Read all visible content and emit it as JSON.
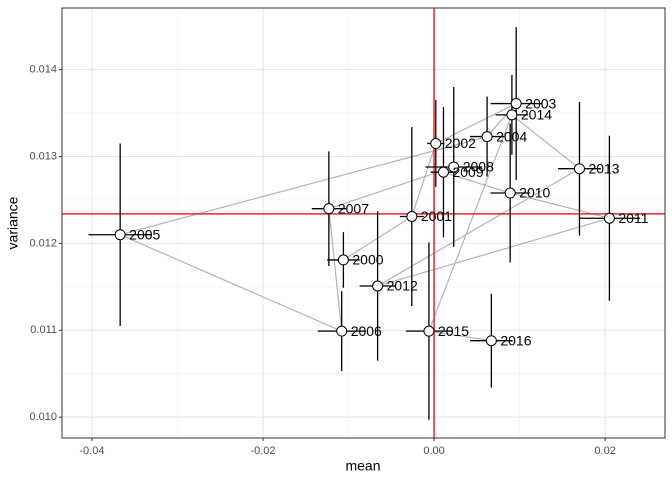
{
  "chart_data": {
    "type": "scatter",
    "x_label": "mean",
    "y_label": "variance",
    "xlim": [
      -0.0435,
      0.027
    ],
    "ylim": [
      0.00976,
      0.01471
    ],
    "xticks": [
      -0.04,
      -0.02,
      {
        "value": 0,
        "label": "0.00"
      },
      0.02
    ],
    "yticks": [
      {
        "value": 0.01,
        "label": "0.010"
      },
      0.011,
      0.012,
      0.013,
      0.014
    ],
    "grid": true,
    "vline": 0,
    "hline": 0.01234,
    "ref_color": "#e8262a",
    "path_color": "#b3b3b3",
    "point_color": "#ffffff",
    "error_color": "#000000",
    "points": [
      {
        "label": "2000",
        "x": -0.0106,
        "y": 0.01181,
        "xerr": 0.0019,
        "yerr": 0.00032
      },
      {
        "label": "2001",
        "x": -0.0026,
        "y": 0.01231,
        "xerr": 0.0014,
        "yerr": 0.00103
      },
      {
        "label": "2002",
        "x": 0.0002,
        "y": 0.01315,
        "xerr": 0.001,
        "yerr": 0.0005
      },
      {
        "label": "2003",
        "x": 0.0096,
        "y": 0.01361,
        "xerr": 0.003,
        "yerr": 0.00088
      },
      {
        "label": "2004",
        "x": 0.0062,
        "y": 0.01323,
        "xerr": 0.002,
        "yerr": 0.00046
      },
      {
        "label": "2005",
        "x": -0.0367,
        "y": 0.0121,
        "xerr": 0.0037,
        "yerr": 0.00105
      },
      {
        "label": "2006",
        "x": -0.0108,
        "y": 0.01099,
        "xerr": 0.0028,
        "yerr": 0.00046
      },
      {
        "label": "2007",
        "x": -0.0123,
        "y": 0.0124,
        "xerr": 0.002,
        "yerr": 0.00066
      },
      {
        "label": "2008",
        "x": 0.0023,
        "y": 0.01288,
        "xerr": 0.0033,
        "yerr": 0.00092
      },
      {
        "label": "2009",
        "x": 0.0011,
        "y": 0.01282,
        "xerr": 0.0015,
        "yerr": 0.00075
      },
      {
        "label": "2010",
        "x": 0.0089,
        "y": 0.01258,
        "xerr": 0.0023,
        "yerr": 0.0008
      },
      {
        "label": "2011",
        "x": 0.0205,
        "y": 0.01229,
        "xerr": 0.0036,
        "yerr": 0.00095
      },
      {
        "label": "2012",
        "x": -0.0066,
        "y": 0.01151,
        "xerr": 0.0021,
        "yerr": 0.00086
      },
      {
        "label": "2013",
        "x": 0.017,
        "y": 0.01286,
        "xerr": 0.0025,
        "yerr": 0.00077
      },
      {
        "label": "2014",
        "x": 0.0091,
        "y": 0.01348,
        "xerr": 0.0019,
        "yerr": 0.00046
      },
      {
        "label": "2015",
        "x": -0.0006,
        "y": 0.01099,
        "xerr": 0.0027,
        "yerr": 0.00102
      },
      {
        "label": "2016",
        "x": 0.0067,
        "y": 0.01088,
        "xerr": 0.0025,
        "yerr": 0.00054
      }
    ]
  }
}
